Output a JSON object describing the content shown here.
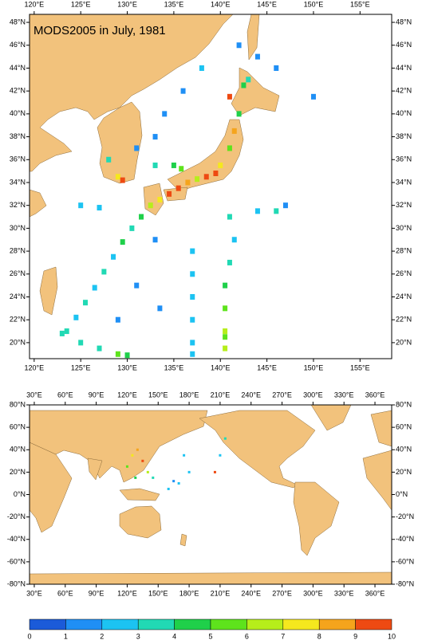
{
  "chart_data": [
    {
      "type": "map",
      "title": "MODS2005 in July, 1981",
      "xlim": [
        119.5,
        158.4
      ],
      "ylim": [
        18.6,
        48.7
      ],
      "xticks": [
        {
          "value": 120,
          "label": "120°E"
        },
        {
          "value": 125,
          "label": "125°E"
        },
        {
          "value": 130,
          "label": "130°E"
        },
        {
          "value": 135,
          "label": "135°E"
        },
        {
          "value": 140,
          "label": "140°E"
        },
        {
          "value": 145,
          "label": "145°E"
        },
        {
          "value": 150,
          "label": "150°E"
        },
        {
          "value": 155,
          "label": "155°E"
        }
      ],
      "yticks": [
        {
          "value": 20,
          "label": "20°N"
        },
        {
          "value": 22,
          "label": "22°N"
        },
        {
          "value": 24,
          "label": "24°N"
        },
        {
          "value": 26,
          "label": "26°N"
        },
        {
          "value": 28,
          "label": "28°N"
        },
        {
          "value": 30,
          "label": "30°N"
        },
        {
          "value": 32,
          "label": "32°N"
        },
        {
          "value": 34,
          "label": "34°N"
        },
        {
          "value": 36,
          "label": "36°N"
        },
        {
          "value": 38,
          "label": "38°N"
        },
        {
          "value": 40,
          "label": "40°N"
        },
        {
          "value": 42,
          "label": "42°N"
        },
        {
          "value": 44,
          "label": "44°N"
        },
        {
          "value": 46,
          "label": "46°N"
        },
        {
          "value": 48,
          "label": "48°N"
        }
      ],
      "lon": [
        123.5,
        124.5,
        125.5,
        126.5,
        127.5,
        128.5,
        129.5,
        130.5,
        131.5,
        132.5,
        133.5,
        134.5,
        135.5,
        136.5,
        137.5,
        138.5,
        139.5,
        140,
        141,
        141.5,
        142,
        141,
        142.5,
        143,
        141,
        141.5,
        141,
        140.5,
        140.5,
        140.5,
        140.5,
        140.5,
        137,
        137,
        137,
        137,
        137,
        137,
        123,
        125,
        127,
        129,
        130,
        131,
        133,
        134,
        136,
        138,
        142,
        144,
        146,
        150,
        147,
        146,
        144,
        127,
        125,
        128,
        129,
        129.5,
        133,
        135,
        135.8,
        133,
        131,
        133.5,
        129
      ],
      "lat": [
        21,
        22.2,
        23.5,
        24.8,
        26.2,
        27.5,
        28.8,
        30,
        31,
        32,
        32.5,
        33,
        33.5,
        34,
        34.3,
        34.5,
        34.8,
        35.5,
        37,
        38.5,
        40,
        41.5,
        42.5,
        43,
        31,
        29,
        27,
        25,
        23,
        21,
        19.5,
        20.5,
        28,
        26,
        24,
        22,
        20,
        19,
        20.8,
        20,
        19.5,
        19,
        18.9,
        37,
        38,
        40,
        42,
        44,
        46,
        45,
        44,
        41.5,
        32,
        31.5,
        31.5,
        31.8,
        32,
        36,
        34.5,
        34.2,
        35.5,
        35.5,
        35.2,
        29,
        25,
        23,
        22
      ],
      "values": [
        3,
        2,
        3,
        2,
        3,
        2,
        4,
        3,
        4,
        6,
        7,
        9,
        10,
        8,
        6,
        9,
        10,
        7,
        5,
        8,
        4,
        10,
        4,
        3,
        3,
        2,
        3,
        4,
        5,
        6,
        6,
        5,
        2,
        2,
        2,
        2,
        2,
        2,
        3,
        3,
        3,
        5,
        4,
        1,
        1,
        1,
        1,
        2,
        1,
        1,
        1,
        1,
        1,
        3,
        2,
        2,
        2,
        3,
        7,
        9,
        3,
        4,
        5,
        1,
        1,
        1,
        1
      ]
    },
    {
      "type": "map",
      "xlim": [
        25.4,
        376.2
      ],
      "ylim": [
        -80,
        80
      ],
      "xticks": [
        {
          "value": 30,
          "label": "30°E"
        },
        {
          "value": 60,
          "label": "60°E"
        },
        {
          "value": 90,
          "label": "90°E"
        },
        {
          "value": 120,
          "label": "120°E"
        },
        {
          "value": 150,
          "label": "150°E"
        },
        {
          "value": 180,
          "label": "180°E"
        },
        {
          "value": 210,
          "label": "210°E"
        },
        {
          "value": 240,
          "label": "240°E"
        },
        {
          "value": 270,
          "label": "270°E"
        },
        {
          "value": 300,
          "label": "300°E"
        },
        {
          "value": 330,
          "label": "330°E"
        },
        {
          "value": 360,
          "label": "360°E"
        }
      ],
      "yticks": [
        {
          "value": -80,
          "label": "-80°N"
        },
        {
          "value": -60,
          "label": "-60°N"
        },
        {
          "value": -40,
          "label": "-40°N"
        },
        {
          "value": -20,
          "label": "-20°N"
        },
        {
          "value": 0,
          "label": "0°N"
        },
        {
          "value": 20,
          "label": "20°N"
        },
        {
          "value": 40,
          "label": "40°N"
        },
        {
          "value": 60,
          "label": "60°N"
        },
        {
          "value": 80,
          "label": "80°N"
        }
      ],
      "lon": [
        120,
        125,
        130,
        135,
        140,
        128,
        145,
        175,
        180,
        205,
        210,
        215,
        160,
        170,
        165
      ],
      "lat": [
        25,
        35,
        40,
        30,
        20,
        15,
        15,
        35,
        20,
        20,
        35,
        50,
        5,
        10,
        12
      ],
      "values": [
        5,
        7,
        8,
        9,
        6,
        4,
        3,
        2,
        2,
        9,
        2,
        3,
        2,
        2,
        1
      ]
    },
    {
      "type": "colorbar",
      "ticks": [
        0,
        1,
        2,
        3,
        4,
        5,
        6,
        7,
        8,
        9,
        10
      ],
      "colors": [
        "#1b5bd9",
        "#1f8ff5",
        "#1cc3f2",
        "#21d9b4",
        "#1fd04a",
        "#5ee31c",
        "#b6ee1a",
        "#f5e81e",
        "#f5a41c",
        "#ee4a12"
      ]
    }
  ]
}
